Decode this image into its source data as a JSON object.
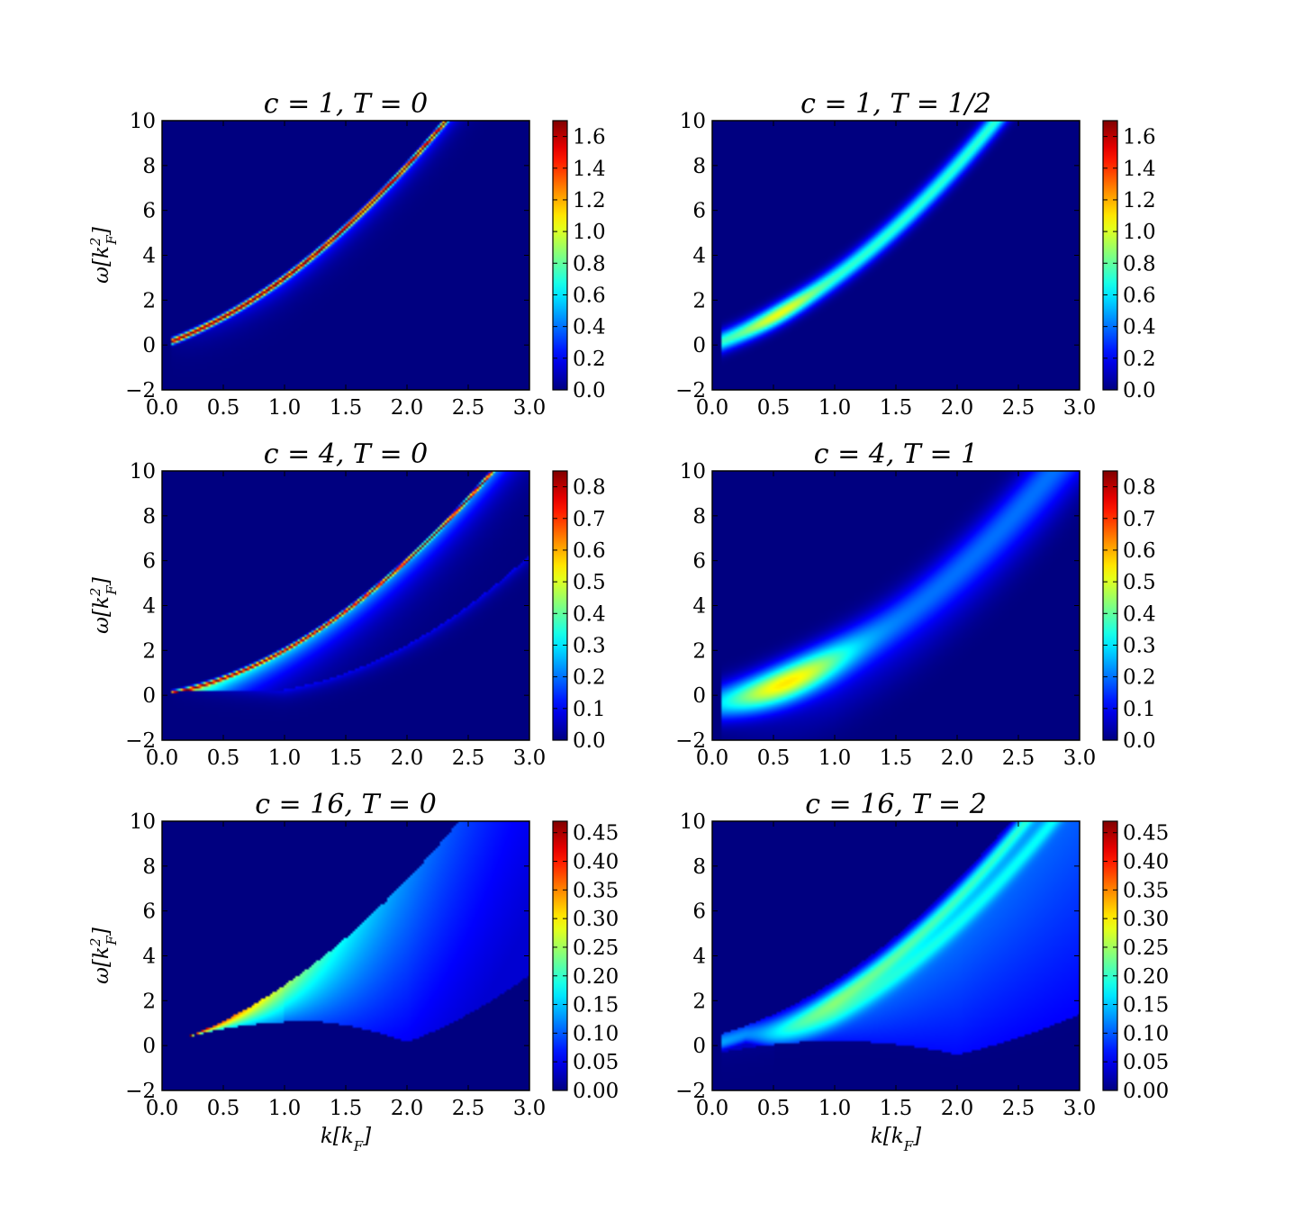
{
  "figure": {
    "layout": "3 rows x 2 columns",
    "colormap": "jet",
    "colormap_stops": [
      "#00007f",
      "#0000ff",
      "#00ffff",
      "#7fff7f",
      "#ffff00",
      "#ff7f00",
      "#ff0000",
      "#7f0000"
    ],
    "background": "#00007f"
  },
  "chart_data": [
    {
      "type": "heatmap",
      "title": "c = 1, T = 0",
      "xlabel": "",
      "ylabel": "ω[k_F^2]",
      "xlim": [
        0,
        3.0
      ],
      "ylim": [
        -2,
        10
      ],
      "xticks": [
        "0.0",
        "0.5",
        "1.0",
        "1.5",
        "2.0",
        "2.5",
        "3.0"
      ],
      "yticks": [
        "−2",
        "0",
        "2",
        "4",
        "6",
        "8",
        "10"
      ],
      "colorbar": {
        "min": 0,
        "max": 1.7,
        "ticks": [
          "0.0",
          "0.2",
          "0.4",
          "0.6",
          "0.8",
          "1.0",
          "1.2",
          "1.4",
          "1.6"
        ]
      },
      "feature": {
        "c": 1,
        "T": 0,
        "peak_curve": "ω = k² + 2k/√c",
        "width": 0.05,
        "max_value": 1.7
      }
    },
    {
      "type": "heatmap",
      "title": "c = 1, T = 1/2",
      "xlabel": "",
      "ylabel": "",
      "xlim": [
        0,
        3.0
      ],
      "ylim": [
        -2,
        10
      ],
      "xticks": [
        "0.0",
        "0.5",
        "1.0",
        "1.5",
        "2.0",
        "2.5",
        "3.0"
      ],
      "yticks": [
        "−2",
        "0",
        "2",
        "4",
        "6",
        "8",
        "10"
      ],
      "colorbar": {
        "min": 0,
        "max": 1.7,
        "ticks": [
          "0.0",
          "0.2",
          "0.4",
          "0.6",
          "0.8",
          "1.0",
          "1.2",
          "1.4",
          "1.6"
        ]
      },
      "feature": {
        "c": 1,
        "T": 0.5,
        "peak_curve": "ω ≈ k² + 2k/√c",
        "width": 0.3,
        "max_value": 1.3
      }
    },
    {
      "type": "heatmap",
      "title": "c = 4, T = 0",
      "xlabel": "",
      "ylabel": "ω[k_F^2]",
      "xlim": [
        0,
        3.0
      ],
      "ylim": [
        -2,
        10
      ],
      "xticks": [
        "0.0",
        "0.5",
        "1.0",
        "1.5",
        "2.0",
        "2.5",
        "3.0"
      ],
      "yticks": [
        "−2",
        "0",
        "2",
        "4",
        "6",
        "8",
        "10"
      ],
      "colorbar": {
        "min": 0,
        "max": 0.85,
        "ticks": [
          "0.0",
          "0.1",
          "0.2",
          "0.3",
          "0.4",
          "0.5",
          "0.6",
          "0.7",
          "0.8"
        ]
      },
      "feature": {
        "c": 4,
        "T": 0,
        "peak_curve": "ω = k² + 2k/√c",
        "width": 0.05,
        "max_value": 0.85
      }
    },
    {
      "type": "heatmap",
      "title": "c = 4, T = 1",
      "xlabel": "",
      "ylabel": "",
      "xlim": [
        0,
        3.0
      ],
      "ylim": [
        -2,
        10
      ],
      "xticks": [
        "0.0",
        "0.5",
        "1.0",
        "1.5",
        "2.0",
        "2.5",
        "3.0"
      ],
      "yticks": [
        "−2",
        "0",
        "2",
        "4",
        "6",
        "8",
        "10"
      ],
      "colorbar": {
        "min": 0,
        "max": 0.85,
        "ticks": [
          "0.0",
          "0.1",
          "0.2",
          "0.3",
          "0.4",
          "0.5",
          "0.6",
          "0.7",
          "0.8"
        ]
      },
      "feature": {
        "c": 4,
        "T": 1,
        "peak_curve": "ω ≈ k² + 2k/√c",
        "width": 0.6,
        "max_value": 0.65
      }
    },
    {
      "type": "heatmap",
      "title": "c = 16, T = 0",
      "xlabel": "k[k_F]",
      "ylabel": "ω[k_F^2]",
      "xlim": [
        0,
        3.0
      ],
      "ylim": [
        -2,
        10
      ],
      "xticks": [
        "0.0",
        "0.5",
        "1.0",
        "1.5",
        "2.0",
        "2.5",
        "3.0"
      ],
      "yticks": [
        "−2",
        "0",
        "2",
        "4",
        "6",
        "8",
        "10"
      ],
      "colorbar": {
        "min": 0,
        "max": 0.47,
        "ticks": [
          "0.00",
          "0.05",
          "0.10",
          "0.15",
          "0.20",
          "0.25",
          "0.30",
          "0.35",
          "0.40",
          "0.45"
        ]
      },
      "feature": {
        "c": 16,
        "T": 0,
        "peak_curve": "ω = k² + 2k",
        "lower_edge": "ω = |k² − 2k|",
        "max_value": 0.47
      }
    },
    {
      "type": "heatmap",
      "title": "c = 16, T = 2",
      "xlabel": "k[k_F]",
      "ylabel": "",
      "xlim": [
        0,
        3.0
      ],
      "ylim": [
        -2,
        10
      ],
      "xticks": [
        "0.0",
        "0.5",
        "1.0",
        "1.5",
        "2.0",
        "2.5",
        "3.0"
      ],
      "yticks": [
        "−2",
        "0",
        "2",
        "4",
        "6",
        "8",
        "10"
      ],
      "colorbar": {
        "min": 0,
        "max": 0.47,
        "ticks": [
          "0.00",
          "0.05",
          "0.10",
          "0.15",
          "0.20",
          "0.25",
          "0.30",
          "0.35",
          "0.40",
          "0.45"
        ]
      },
      "feature": {
        "c": 16,
        "T": 2,
        "peak_curve": "ω ≈ k² + 2k",
        "lower_edge": "ω ≈ |k² − 2k|",
        "max_value": 0.28
      }
    }
  ]
}
